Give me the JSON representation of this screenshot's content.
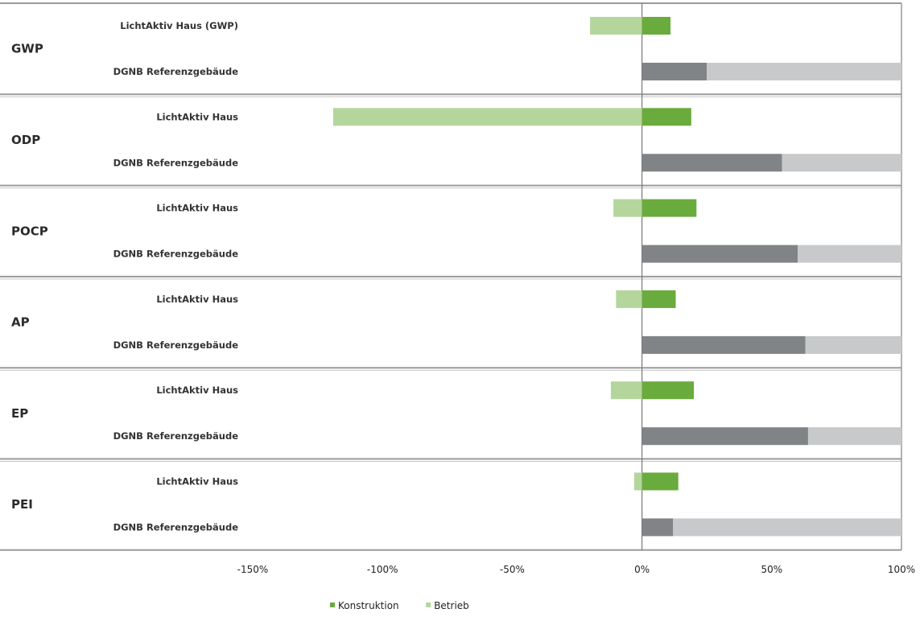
{
  "chart_data": {
    "type": "bar",
    "orientation": "horizontal",
    "stacked": true,
    "xlim": [
      -150,
      100
    ],
    "x_ticks": [
      "-150%",
      "-100%",
      "-50%",
      "0%",
      "50%",
      "100%"
    ],
    "x_tick_values": [
      -150,
      -100,
      -50,
      0,
      50,
      100
    ],
    "legend": {
      "position": "bottom",
      "entries": [
        {
          "label": "Konstruktion",
          "color": "#6aab3d"
        },
        {
          "label": "Betrieb",
          "color": "#b4d69c"
        }
      ]
    },
    "colors": {
      "konstruktion": "#6aab3d",
      "betrieb": "#b4d69c",
      "ref_konstruktion": "#808486",
      "ref_betrieb": "#c8c9cb",
      "separator": "#9a9a9a"
    },
    "groups": [
      {
        "category": "GWP",
        "rows": [
          {
            "label": "LichtAktiv Haus (GWP)",
            "kind": "lichtaktiv",
            "konstruktion": 11,
            "betrieb": -20
          },
          {
            "label": "DGNB Referenzgebäude",
            "kind": "reference",
            "konstruktion": 25,
            "betrieb": 75
          }
        ]
      },
      {
        "category": "ODP",
        "rows": [
          {
            "label": "LichtAktiv Haus",
            "kind": "lichtaktiv",
            "konstruktion": 19,
            "betrieb": -119
          },
          {
            "label": "DGNB Referenzgebäude",
            "kind": "reference",
            "konstruktion": 54,
            "betrieb": 46
          }
        ]
      },
      {
        "category": "POCP",
        "rows": [
          {
            "label": "LichtAktiv Haus",
            "kind": "lichtaktiv",
            "konstruktion": 21,
            "betrieb": -11
          },
          {
            "label": "DGNB Referenzgebäude",
            "kind": "reference",
            "konstruktion": 60,
            "betrieb": 40
          }
        ]
      },
      {
        "category": "AP",
        "rows": [
          {
            "label": "LichtAktiv Haus",
            "kind": "lichtaktiv",
            "konstruktion": 13,
            "betrieb": -10
          },
          {
            "label": "DGNB Referenzgebäude",
            "kind": "reference",
            "konstruktion": 63,
            "betrieb": 37
          }
        ]
      },
      {
        "category": "EP",
        "rows": [
          {
            "label": "LichtAktiv Haus",
            "kind": "lichtaktiv",
            "konstruktion": 20,
            "betrieb": -12
          },
          {
            "label": "DGNB Referenzgebäude",
            "kind": "reference",
            "konstruktion": 64,
            "betrieb": 36
          }
        ]
      },
      {
        "category": "PEI",
        "rows": [
          {
            "label": "LichtAktiv Haus",
            "kind": "lichtaktiv",
            "konstruktion": 14,
            "betrieb": -3
          },
          {
            "label": "DGNB Referenzgebäude",
            "kind": "reference",
            "konstruktion": 12,
            "betrieb": 88
          }
        ]
      }
    ]
  }
}
